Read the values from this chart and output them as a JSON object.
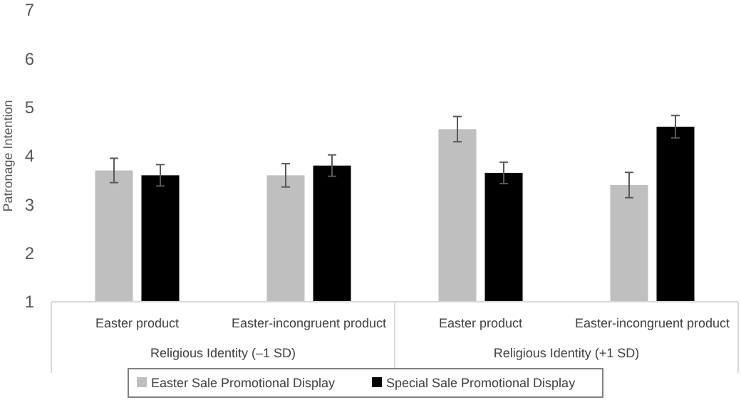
{
  "chart_data": {
    "type": "bar",
    "ylabel": "Patronage Intention",
    "categories": [
      "Easter product",
      "Easter-incongruent product",
      "Easter product",
      "Easter-incongruent product"
    ],
    "series": [
      {
        "name": "Easter Sale Promotional Display",
        "color": "#bfbfbf",
        "values": [
          3.7,
          3.6,
          4.55,
          3.4
        ],
        "errors": [
          0.25,
          0.24,
          0.26,
          0.26
        ]
      },
      {
        "name": "Special Sale Promotional Display",
        "color": "#000000",
        "values": [
          3.6,
          3.8,
          3.65,
          4.6
        ],
        "errors": [
          0.22,
          0.22,
          0.22,
          0.23
        ]
      }
    ],
    "ylim": [
      1,
      7
    ],
    "yticks": [
      1,
      2,
      3,
      4,
      5,
      6,
      7
    ],
    "grid": false,
    "legend": "bottom",
    "annotations": [
      "Religious Identity (–1 SD)",
      "Religious Identity  (+1 SD)"
    ]
  }
}
